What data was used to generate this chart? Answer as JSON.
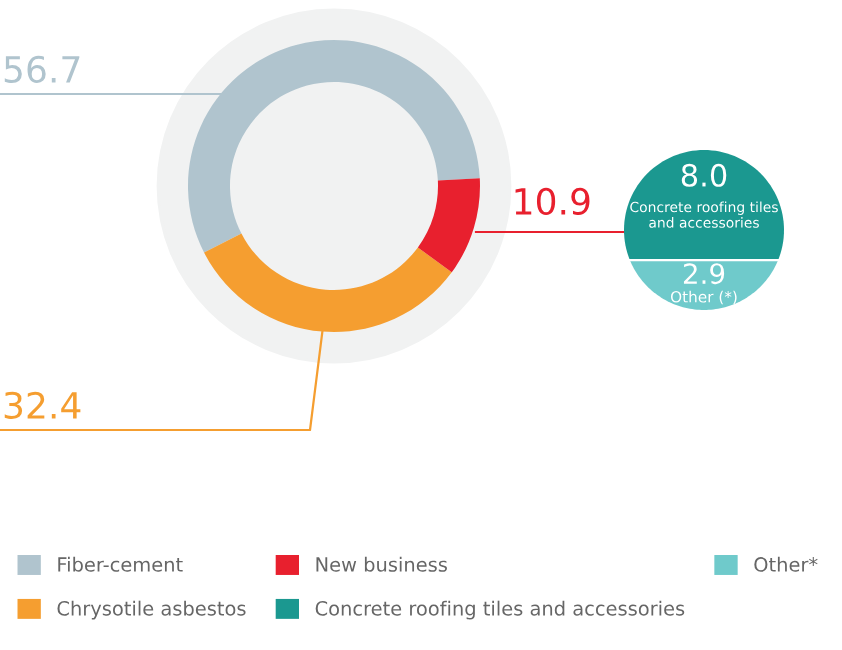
{
  "chart_data": [
    {
      "type": "donut",
      "categories": [
        "Fiber-cement",
        "Chrysotile asbestos",
        "New business"
      ],
      "values": [
        56.7,
        32.4,
        10.9
      ],
      "colors": [
        "#b0c4ce",
        "#f59e30",
        "#e8202e"
      ],
      "data_labels": true,
      "legend": "bottom"
    },
    {
      "type": "other",
      "categories": [
        "Concrete roofing tiles and accessories",
        "Other (*)"
      ],
      "values": [
        8.0,
        2.9
      ],
      "value_labels": [
        "8.0",
        "2.9"
      ],
      "colors": [
        "#1b9890",
        "#6fcacb"
      ],
      "annotations": [
        "Concrete roofing tiles and accessories",
        "Other*"
      ]
    }
  ]
}
